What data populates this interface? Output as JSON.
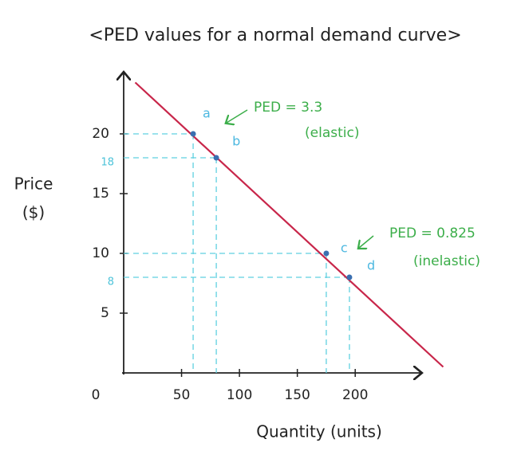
{
  "chart_data": {
    "type": "line",
    "title": "<PED values for a normal demand curve>",
    "xlabel": "Quantity (units)",
    "ylabel": [
      "Price",
      "($)"
    ],
    "xlim": [
      0,
      255
    ],
    "ylim": [
      0,
      25
    ],
    "xticks": [
      0,
      50,
      100,
      150,
      200
    ],
    "yticks": [
      5,
      10,
      15,
      20
    ],
    "marked_yticks": [
      18,
      8
    ],
    "line": {
      "color": "#c8264a",
      "x": [
        10,
        276
      ],
      "values": [
        24.3,
        0.5
      ]
    },
    "points": {
      "color": "#3a6fb0",
      "guide_color": "#5fd0e0",
      "labels": [
        "a",
        "b",
        "c",
        "d"
      ],
      "x": [
        60,
        80,
        175,
        195
      ],
      "values": [
        20,
        18,
        10,
        8
      ]
    },
    "annotations": [
      "PED = 3.3",
      "(elastic)",
      "PED = 0.825",
      "(inelastic)"
    ]
  }
}
